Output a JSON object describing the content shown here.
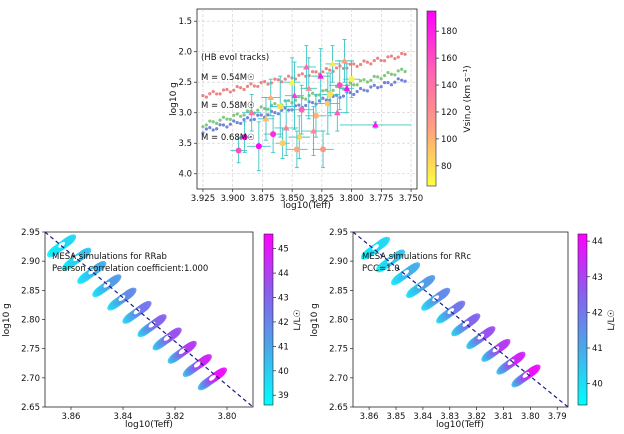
{
  "chart_data": [
    {
      "type": "scatter",
      "id": "top",
      "xlabel": "log10(Teff)",
      "ylabel": "log10 g",
      "xlim": [
        3.93,
        3.745
      ],
      "ylim": [
        1.3,
        4.25
      ],
      "x_ticks": [
        "3.925",
        "3.900",
        "3.875",
        "3.850",
        "3.825",
        "3.800",
        "3.775",
        "3.750"
      ],
      "x_tick_values": [
        3.925,
        3.9,
        3.875,
        3.85,
        3.825,
        3.8,
        3.775,
        3.75
      ],
      "y_ticks": [
        "1.5",
        "2.0",
        "2.5",
        "3.0",
        "3.5",
        "4.0"
      ],
      "y_tick_values": [
        1.5,
        2.0,
        2.5,
        3.0,
        3.5,
        4.0
      ],
      "annotations": {
        "hb": "(HB evol tracks)",
        "m1": "M = 0.54M☉",
        "m2": "M = 0.58M☉",
        "m3": "M = 0.68M☉"
      },
      "colorbar": {
        "label": "Vsin,o (km s⁻¹)",
        "range": [
          65,
          195
        ],
        "ticks": [
          "80",
          "100",
          "120",
          "140",
          "160",
          "180"
        ],
        "tick_values": [
          80,
          100,
          120,
          140,
          160,
          180
        ],
        "colors": [
          "#ffff3c",
          "#ff9f7f",
          "#ff5fb5",
          "#ff00ff"
        ]
      },
      "tracks": [
        {
          "name": "M = 0.54M☉",
          "color": "#e8706e",
          "x0": 3.925,
          "x1": 3.755,
          "y0": 2.72,
          "y1": 2.05
        },
        {
          "name": "M = 0.58M☉",
          "color": "#6bbf6b",
          "x0": 3.925,
          "x1": 3.755,
          "y0": 3.2,
          "y1": 2.3
        },
        {
          "name": "M = 0.68M☉",
          "color": "#5b6fd6",
          "x0": 3.925,
          "x1": 3.755,
          "y0": 3.3,
          "y1": 2.45
        }
      ],
      "stars": [
        {
          "x": 3.848,
          "y": 2.72,
          "xe": 0.008,
          "ye": 0.55,
          "v": 170,
          "m": "t"
        },
        {
          "x": 3.842,
          "y": 2.95,
          "xe": 0.01,
          "ye": 0.4,
          "v": 150,
          "m": "o"
        },
        {
          "x": 3.836,
          "y": 2.6,
          "xe": 0.007,
          "ye": 0.5,
          "v": 120,
          "m": "t"
        },
        {
          "x": 3.83,
          "y": 3.05,
          "xe": 0.009,
          "ye": 0.35,
          "v": 100,
          "m": "o"
        },
        {
          "x": 3.826,
          "y": 2.4,
          "xe": 0.008,
          "ye": 0.45,
          "v": 185,
          "m": "t"
        },
        {
          "x": 3.82,
          "y": 2.85,
          "xe": 0.01,
          "ye": 0.5,
          "v": 90,
          "m": "o"
        },
        {
          "x": 3.816,
          "y": 2.2,
          "xe": 0.006,
          "ye": 0.3,
          "v": 75,
          "m": "t"
        },
        {
          "x": 3.81,
          "y": 2.55,
          "xe": 0.009,
          "ye": 0.4,
          "v": 160,
          "m": "o"
        },
        {
          "x": 3.806,
          "y": 2.15,
          "xe": 0.008,
          "ye": 0.35,
          "v": 110,
          "m": "t"
        },
        {
          "x": 3.8,
          "y": 2.45,
          "xe": 0.007,
          "ye": 0.3,
          "v": 70,
          "m": "o"
        },
        {
          "x": 3.855,
          "y": 3.25,
          "xe": 0.01,
          "ye": 0.45,
          "v": 130,
          "m": "t"
        },
        {
          "x": 3.86,
          "y": 2.9,
          "xe": 0.009,
          "ye": 0.5,
          "v": 80,
          "m": "o"
        },
        {
          "x": 3.866,
          "y": 3.35,
          "xe": 0.008,
          "ye": 0.3,
          "v": 175,
          "m": "o"
        },
        {
          "x": 3.872,
          "y": 3.1,
          "xe": 0.007,
          "ye": 0.35,
          "v": 95,
          "m": "t"
        },
        {
          "x": 3.878,
          "y": 3.55,
          "xe": 0.01,
          "ye": 0.4,
          "v": 190,
          "m": "o"
        },
        {
          "x": 3.884,
          "y": 3.0,
          "xe": 0.008,
          "ye": 0.3,
          "v": 140,
          "m": "t"
        },
        {
          "x": 3.89,
          "y": 3.4,
          "xe": 0.006,
          "ye": 0.25,
          "v": 185,
          "m": "o"
        },
        {
          "x": 3.895,
          "y": 3.62,
          "xe": 0.007,
          "ye": 0.2,
          "v": 160,
          "m": "o"
        },
        {
          "x": 3.844,
          "y": 3.4,
          "xe": 0.009,
          "ye": 0.35,
          "v": 85,
          "m": "o"
        },
        {
          "x": 3.838,
          "y": 2.25,
          "xe": 0.008,
          "ye": 0.35,
          "v": 145,
          "m": "t"
        },
        {
          "x": 3.832,
          "y": 3.3,
          "xe": 0.01,
          "ye": 0.4,
          "v": 125,
          "m": "t"
        },
        {
          "x": 3.85,
          "y": 2.5,
          "xe": 0.007,
          "ye": 0.4,
          "v": 70,
          "m": "t"
        },
        {
          "x": 3.812,
          "y": 3.0,
          "xe": 0.008,
          "ye": 0.3,
          "v": 155,
          "m": "t"
        },
        {
          "x": 3.824,
          "y": 3.6,
          "xe": 0.009,
          "ye": 0.3,
          "v": 115,
          "m": "o"
        },
        {
          "x": 3.858,
          "y": 3.5,
          "xe": 0.006,
          "ye": 0.25,
          "v": 88,
          "m": "o"
        },
        {
          "x": 3.868,
          "y": 2.75,
          "xe": 0.008,
          "ye": 0.3,
          "v": 100,
          "m": "t"
        },
        {
          "x": 3.78,
          "y": 3.2,
          "xe": 0.03,
          "ye": 0.05,
          "v": 185,
          "m": "t"
        },
        {
          "x": 3.804,
          "y": 2.6,
          "xe": 0.006,
          "ye": 0.4,
          "v": 190,
          "m": "t"
        },
        {
          "x": 3.818,
          "y": 2.7,
          "xe": 0.007,
          "ye": 0.35,
          "v": 78,
          "m": "o"
        },
        {
          "x": 3.846,
          "y": 3.6,
          "xe": 0.009,
          "ye": 0.3,
          "v": 105,
          "m": "o"
        }
      ]
    },
    {
      "type": "scatter",
      "id": "rrab",
      "annotation_line1": "MESA simulations for RRab",
      "annotation_line2": "Pearson correlation coefficient:1.000",
      "xlabel": "log10(Teff)",
      "ylabel": "log10 g",
      "xlim": [
        3.87,
        3.79
      ],
      "ylim": [
        2.95,
        2.65
      ],
      "x_ticks": [
        "3.86",
        "3.84",
        "3.82",
        "3.80"
      ],
      "x_tick_values": [
        3.86,
        3.84,
        3.82,
        3.8
      ],
      "y_ticks": [
        "2.65",
        "2.70",
        "2.75",
        "2.80",
        "2.85",
        "2.90",
        "2.95"
      ],
      "y_tick_values": [
        2.65,
        2.7,
        2.75,
        2.8,
        2.85,
        2.9,
        2.95
      ],
      "colorbar": {
        "label": "L/L☉",
        "range": [
          38.6,
          45.6
        ],
        "ticks": [
          "39",
          "40",
          "41",
          "42",
          "43",
          "44",
          "45"
        ],
        "tick_values": [
          39,
          40,
          41,
          42,
          43,
          44,
          45
        ],
        "colors": [
          "#00ffff",
          "#4aa8e8",
          "#8c5cee",
          "#ff00ff"
        ]
      },
      "line": {
        "x": [
          3.87,
          3.79
        ],
        "y": [
          2.95,
          2.65
        ]
      },
      "loops": {
        "count": 11,
        "x_start": 3.864,
        "x_end": 3.806,
        "g_start": 2.928,
        "g_end": 2.7
      }
    },
    {
      "type": "scatter",
      "id": "rrc",
      "annotation_line1": "MESA simulations for RRc",
      "annotation_line2": "PCC=1.0",
      "xlabel": "log10(Teff)",
      "ylabel": "log10 g",
      "xlim": [
        3.866,
        3.786
      ],
      "ylim": [
        2.95,
        2.65
      ],
      "x_ticks": [
        "3.86",
        "3.85",
        "3.84",
        "3.83",
        "3.82",
        "3.81",
        "3.80",
        "3.79"
      ],
      "x_tick_values": [
        3.86,
        3.85,
        3.84,
        3.83,
        3.82,
        3.81,
        3.8,
        3.79
      ],
      "y_ticks": [
        "2.65",
        "2.70",
        "2.75",
        "2.80",
        "2.85",
        "2.90",
        "2.95"
      ],
      "y_tick_values": [
        2.65,
        2.7,
        2.75,
        2.8,
        2.85,
        2.9,
        2.95
      ],
      "colorbar": {
        "label": "L/L☉",
        "range": [
          39.4,
          44.2
        ],
        "ticks": [
          "40",
          "41",
          "42",
          "43",
          "44"
        ],
        "tick_values": [
          40,
          41,
          42,
          43,
          44
        ],
        "colors": [
          "#00ffff",
          "#4aa8e8",
          "#8c5cee",
          "#ff00ff"
        ]
      },
      "line": {
        "x": [
          3.866,
          3.786
        ],
        "y": [
          2.95,
          2.65
        ]
      },
      "loops": {
        "count": 11,
        "x_start": 3.858,
        "x_end": 3.802,
        "g_start": 2.924,
        "g_end": 2.705
      }
    }
  ]
}
